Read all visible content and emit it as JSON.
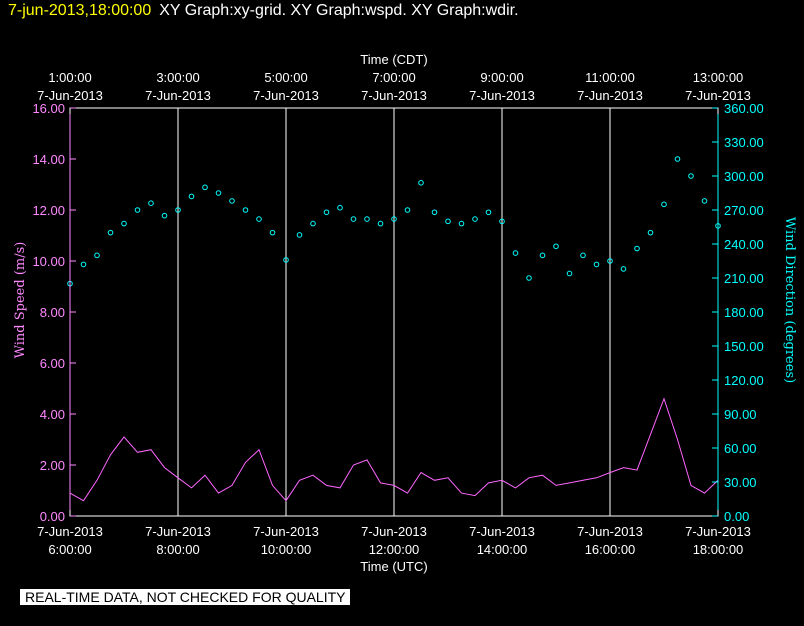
{
  "header": {
    "timestamp": "7-jun-2013,18:00:00",
    "graphs": "XY Graph:xy-grid.  XY Graph:wspd.  XY Graph:wdir."
  },
  "disclaimer": "REAL-TIME DATA, NOT CHECKED FOR QUALITY",
  "colors": {
    "wspd": "#ff66ff",
    "wdir": "#00ffff",
    "axis_left": "#ff88ff",
    "axis_right": "#00ffff",
    "grid": "#ffffff",
    "header_time": "#ffff00"
  },
  "chart_data": {
    "type": "scatter",
    "title": "XY Graph:xy-grid.  XY Graph:wspd.  XY Graph:wdir.",
    "top_axis_title": "Time (CDT)",
    "bottom_axis_title": "Time (UTC)",
    "left_axis_title": "Wind Speed (m/s)",
    "right_axis_title": "Wind Direction (degrees)",
    "xlim_utc_hours": [
      6.0,
      18.0
    ],
    "left_ylim": [
      0,
      16
    ],
    "right_ylim": [
      0,
      360
    ],
    "left_ticks": [
      "0.00",
      "2.00",
      "4.00",
      "6.00",
      "8.00",
      "10.00",
      "12.00",
      "14.00",
      "16.00"
    ],
    "right_ticks": [
      "0.00",
      "30.00",
      "60.00",
      "90.00",
      "120.00",
      "150.00",
      "180.00",
      "210.00",
      "240.00",
      "270.00",
      "300.00",
      "330.00",
      "360.00"
    ],
    "bottom_ticks": [
      {
        "utc": 6,
        "date": "7-Jun-2013",
        "time": "6:00:00"
      },
      {
        "utc": 8,
        "date": "7-Jun-2013",
        "time": "8:00:00"
      },
      {
        "utc": 10,
        "date": "7-Jun-2013",
        "time": "10:00:00"
      },
      {
        "utc": 12,
        "date": "7-Jun-2013",
        "time": "12:00:00"
      },
      {
        "utc": 14,
        "date": "7-Jun-2013",
        "time": "14:00:00"
      },
      {
        "utc": 16,
        "date": "7-Jun-2013",
        "time": "16:00:00"
      },
      {
        "utc": 18,
        "date": "7-Jun-2013",
        "time": "18:00:00"
      }
    ],
    "top_ticks": [
      {
        "utc": 6,
        "time": "1:00:00",
        "date": "7-Jun-2013"
      },
      {
        "utc": 8,
        "time": "3:00:00",
        "date": "7-Jun-2013"
      },
      {
        "utc": 10,
        "time": "5:00:00",
        "date": "7-Jun-2013"
      },
      {
        "utc": 12,
        "time": "7:00:00",
        "date": "7-Jun-2013"
      },
      {
        "utc": 14,
        "time": "9:00:00",
        "date": "7-Jun-2013"
      },
      {
        "utc": 16,
        "time": "11:00:00",
        "date": "7-Jun-2013"
      },
      {
        "utc": 18,
        "time": "13:00:00",
        "date": "7-Jun-2013"
      }
    ],
    "grid_lines_utc": [
      8,
      10,
      12,
      14,
      16
    ],
    "series": [
      {
        "name": "Wind Speed (m/s)",
        "axis": "left",
        "style": "line",
        "x": [
          6.0,
          6.25,
          6.5,
          6.75,
          7.0,
          7.25,
          7.5,
          7.75,
          8.0,
          8.25,
          8.5,
          8.75,
          9.0,
          9.25,
          9.5,
          9.75,
          10.0,
          10.25,
          10.5,
          10.75,
          11.0,
          11.25,
          11.5,
          11.75,
          12.0,
          12.25,
          12.5,
          12.75,
          13.0,
          13.25,
          13.5,
          13.75,
          14.0,
          14.25,
          14.5,
          14.75,
          15.0,
          15.25,
          15.5,
          15.75,
          16.0,
          16.25,
          16.5,
          16.75,
          17.0,
          17.25,
          17.5,
          17.75,
          18.0
        ],
        "values": [
          0.9,
          0.6,
          1.4,
          2.4,
          3.1,
          2.5,
          2.6,
          1.9,
          1.5,
          1.1,
          1.6,
          0.9,
          1.2,
          2.1,
          2.6,
          1.2,
          0.6,
          1.4,
          1.6,
          1.2,
          1.1,
          2.0,
          2.2,
          1.3,
          1.2,
          0.9,
          1.7,
          1.4,
          1.5,
          0.9,
          0.8,
          1.3,
          1.4,
          1.1,
          1.5,
          1.6,
          1.2,
          1.3,
          1.4,
          1.5,
          1.7,
          1.9,
          1.8,
          3.2,
          4.6,
          3.0,
          1.2,
          0.9,
          1.4
        ]
      },
      {
        "name": "Wind Direction (degrees)",
        "axis": "right",
        "style": "points",
        "x": [
          6.0,
          6.25,
          6.5,
          6.75,
          7.0,
          7.25,
          7.5,
          7.75,
          8.0,
          8.25,
          8.5,
          8.75,
          9.0,
          9.25,
          9.5,
          9.75,
          10.0,
          10.25,
          10.5,
          10.75,
          11.0,
          11.25,
          11.5,
          11.75,
          12.0,
          12.25,
          12.5,
          12.75,
          13.0,
          13.25,
          13.5,
          13.75,
          14.0,
          14.25,
          14.5,
          14.75,
          15.0,
          15.25,
          15.5,
          15.75,
          16.0,
          16.25,
          16.5,
          16.75,
          17.0,
          17.25,
          17.5,
          17.75,
          18.0
        ],
        "values": [
          205,
          222,
          230,
          250,
          258,
          270,
          276,
          265,
          270,
          282,
          290,
          285,
          278,
          270,
          262,
          250,
          226,
          248,
          258,
          268,
          272,
          262,
          262,
          258,
          262,
          270,
          294,
          268,
          260,
          258,
          262,
          268,
          260,
          232,
          210,
          230,
          238,
          214,
          230,
          222,
          225,
          218,
          236,
          250,
          275,
          315,
          300,
          278,
          256
        ]
      }
    ]
  }
}
